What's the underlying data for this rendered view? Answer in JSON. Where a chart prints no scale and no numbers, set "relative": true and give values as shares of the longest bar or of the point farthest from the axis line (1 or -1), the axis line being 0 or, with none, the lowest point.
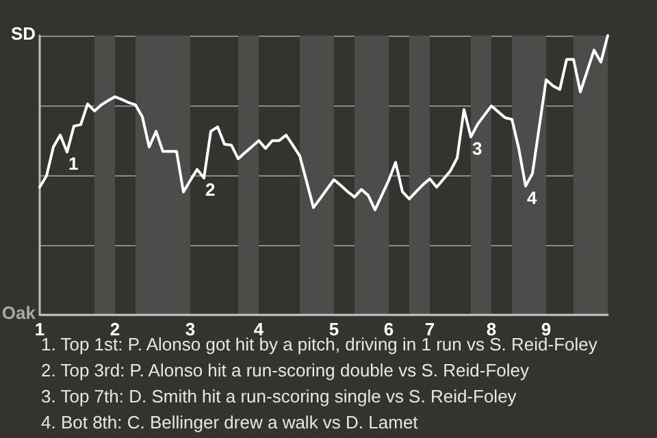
{
  "chart_data": {
    "type": "line",
    "relative": true,
    "categories": [
      "1",
      null,
      null,
      null,
      null,
      null,
      null,
      null,
      null,
      null,
      null,
      "2",
      null,
      null,
      null,
      null,
      null,
      null,
      null,
      null,
      null,
      null,
      "3",
      null,
      null,
      null,
      null,
      null,
      null,
      null,
      null,
      null,
      "4",
      null,
      null,
      null,
      null,
      null,
      null,
      null,
      null,
      null,
      null,
      "5",
      null,
      null,
      null,
      null,
      null,
      null,
      null,
      "6",
      null,
      null,
      null,
      null,
      null,
      "7",
      null,
      null,
      null,
      null,
      null,
      null,
      null,
      null,
      "8",
      null,
      null,
      null,
      null,
      null,
      null,
      null,
      "9",
      null,
      null,
      null,
      null,
      null,
      null,
      null,
      null,
      null
    ],
    "series": [
      {
        "color": "#ffffff",
        "values": [
          0.457,
          0.498,
          0.601,
          0.644,
          0.583,
          0.676,
          0.681,
          0.755,
          0.73,
          0.752,
          0.767,
          0.781,
          0.771,
          0.76,
          0.752,
          0.709,
          0.601,
          0.657,
          0.585,
          0.585,
          0.585,
          0.44,
          0.481,
          0.521,
          0.49,
          0.657,
          0.673,
          0.611,
          0.608,
          0.559,
          0.581,
          0.602,
          0.624,
          0.596,
          0.624,
          0.624,
          0.644,
          0.607,
          0.569,
          0.477,
          0.384,
          0.417,
          0.451,
          0.484,
          0.463,
          0.441,
          0.422,
          0.449,
          0.428,
          0.376,
          0.429,
          0.482,
          0.546,
          0.441,
          0.415,
          0.441,
          0.466,
          0.487,
          0.457,
          0.486,
          0.515,
          0.562,
          0.735,
          0.637,
          0.683,
          0.716,
          0.748,
          0.727,
          0.706,
          0.7,
          0.596,
          0.461,
          0.506,
          0.674,
          0.842,
          0.82,
          0.807,
          0.915,
          0.915,
          0.798,
          0.873,
          0.948,
          0.905,
          1
        ],
        "name": null
      }
    ],
    "annotations": [
      "SD",
      "Oak",
      "1",
      "2",
      "3",
      "4",
      "1. Top 1st: P. Alonso got hit by a pitch, driving in 1 run vs S. Reid-Foley",
      "2. Top 3rd: P. Alonso hit a run-scoring double vs S. Reid-Foley",
      "3. Top 7th: D. Smith hit a run-scoring single vs S. Reid-Foley",
      "4. Bot 8th: C. Bellinger drew a walk vs D. Lamet"
    ],
    "grid": "y",
    "marker": "none",
    "line_style": "solid"
  }
}
